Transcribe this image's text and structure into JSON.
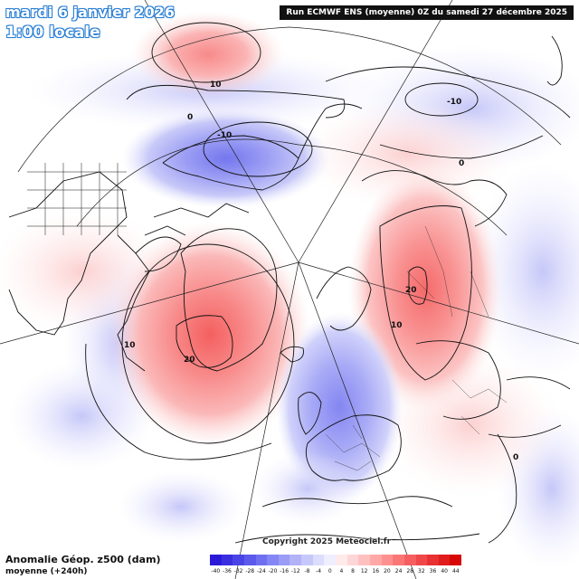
{
  "header": {
    "date": "mardi 6 janvier 2026",
    "time": "1:00 locale",
    "run": "Run ECMWF ENS (moyenne) 0Z du samedi 27 décembre 2025"
  },
  "footer": {
    "title": "Anomalie Géop. z500 (dam)",
    "subtitle": "moyenne   (+240h)",
    "copyright": "Copyright 2025 Meteociel.fr"
  },
  "legend": {
    "labels": [
      "-40",
      "-36",
      "-32",
      "-28",
      "-24",
      "-20",
      "-16",
      "-12",
      "-8",
      "-4",
      "0",
      "4",
      "8",
      "12",
      "16",
      "20",
      "24",
      "28",
      "32",
      "36",
      "40",
      "44"
    ],
    "colors": [
      "#2a1ad8",
      "#3a2ee0",
      "#4a44e6",
      "#5c5aec",
      "#6f70f0",
      "#8486f3",
      "#9a9cf6",
      "#b1b2f8",
      "#c7c8fa",
      "#dcdcfc",
      "#eeeeff",
      "#ffeaea",
      "#ffd6d6",
      "#ffc0c0",
      "#ffa8a8",
      "#ff9090",
      "#fb7777",
      "#f65f5f",
      "#f04848",
      "#e83232",
      "#e01c1c",
      "#d80808"
    ]
  },
  "contour_labels": [
    {
      "text": "10"
    },
    {
      "text": "0"
    },
    {
      "text": "-10"
    },
    {
      "text": "-10"
    },
    {
      "text": "0"
    },
    {
      "text": "20"
    },
    {
      "text": "10"
    },
    {
      "text": "20"
    },
    {
      "text": "10"
    },
    {
      "text": "0"
    }
  ]
}
